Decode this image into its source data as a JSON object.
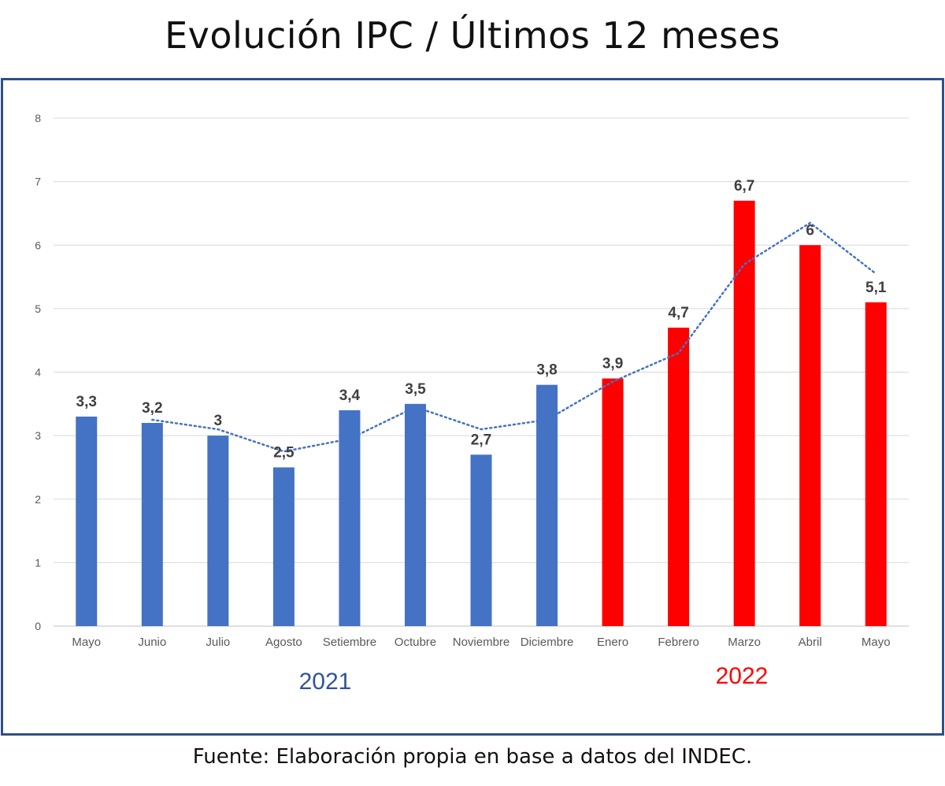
{
  "title": "Evolución IPC / Últimos 12 meses",
  "source": "Fuente: Elaboración propia en base a datos del INDEC.",
  "chart_data": {
    "type": "bar",
    "title": "Evolución IPC / Últimos 12 meses",
    "xlabel": "",
    "ylabel": "",
    "ylim": [
      0,
      8
    ],
    "yticks": [
      "0",
      "1",
      "2",
      "3",
      "4",
      "5",
      "6",
      "7",
      "8"
    ],
    "grid": true,
    "categories": [
      "Mayo",
      "Junio",
      "Julio",
      "Agosto",
      "Setiembre",
      "Octubre",
      "Noviembre",
      "Diciembre",
      "Enero",
      "Febrero",
      "Marzo",
      "Abril",
      "Mayo"
    ],
    "values": [
      3.3,
      3.2,
      3.0,
      2.5,
      3.4,
      3.5,
      2.7,
      3.8,
      3.9,
      4.7,
      6.7,
      6.0,
      5.1
    ],
    "value_labels": [
      "3,3",
      "3,2",
      "3",
      "2,5",
      "3,4",
      "3,5",
      "2,7",
      "3,8",
      "3,9",
      "4,7",
      "6,7",
      "6",
      "5,1"
    ],
    "year_groups": [
      {
        "label": "2021",
        "start": 0,
        "end": 7,
        "color": "#4472c4"
      },
      {
        "label": "2022",
        "start": 8,
        "end": 12,
        "color": "#ff0000"
      }
    ],
    "trendline": {
      "type": "moving-average-2",
      "style": "dotted",
      "color": "#4472c4"
    }
  }
}
